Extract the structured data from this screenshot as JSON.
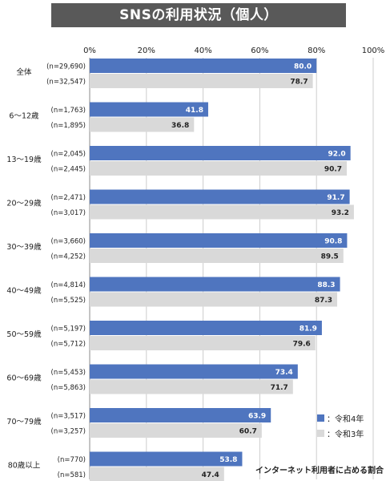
{
  "title": "SNSの利用状況（個人）",
  "note": "インターネット利用者に占める割合",
  "colors": {
    "r4": "#4f75bf",
    "r3": "#d9d9d9",
    "title_bg": "#595959",
    "grid": "#cccccc"
  },
  "chart_data": {
    "type": "bar",
    "orientation": "horizontal",
    "title": "SNSの利用状況（個人）",
    "xlim": [
      0,
      100
    ],
    "x_ticks": [
      "0%",
      "20%",
      "40%",
      "60%",
      "80%",
      "100%"
    ],
    "grid": true,
    "legend_position": "bottom-right",
    "categories": [
      "全体",
      "6～12歳",
      "13～19歳",
      "20～29歳",
      "30～39歳",
      "40～49歳",
      "50～59歳",
      "60～69歳",
      "70～79歳",
      "80歳以上"
    ],
    "series": [
      {
        "name": "令和4年",
        "legend_label": "：令和4年",
        "values": [
          80.0,
          41.8,
          92.0,
          91.7,
          90.8,
          88.3,
          81.9,
          73.4,
          63.9,
          53.8
        ],
        "value_labels": [
          "80.0",
          "41.8",
          "92.0",
          "91.7",
          "90.8",
          "88.3",
          "81.9",
          "73.4",
          "63.9",
          "53.8"
        ],
        "n_labels": [
          "(n=29,690)",
          "(n=1,763)",
          "(n=2,045)",
          "(n=2,471)",
          "(n=3,660)",
          "(n=4,814)",
          "(n=5,197)",
          "(n=5,453)",
          "(n=3,517)",
          "(n=770)"
        ]
      },
      {
        "name": "令和3年",
        "legend_label": "：令和3年",
        "values": [
          78.7,
          36.8,
          90.7,
          93.2,
          89.5,
          87.3,
          79.6,
          71.7,
          60.7,
          47.4
        ],
        "value_labels": [
          "78.7",
          "36.8",
          "90.7",
          "93.2",
          "89.5",
          "87.3",
          "79.6",
          "71.7",
          "60.7",
          "47.4"
        ],
        "n_labels": [
          "(n=32,547)",
          "(n=1,895)",
          "(n=2,445)",
          "(n=3,017)",
          "(n=4,252)",
          "(n=5,525)",
          "(n=5,712)",
          "(n=5,863)",
          "(n=3,257)",
          "(n=581)"
        ]
      }
    ]
  }
}
